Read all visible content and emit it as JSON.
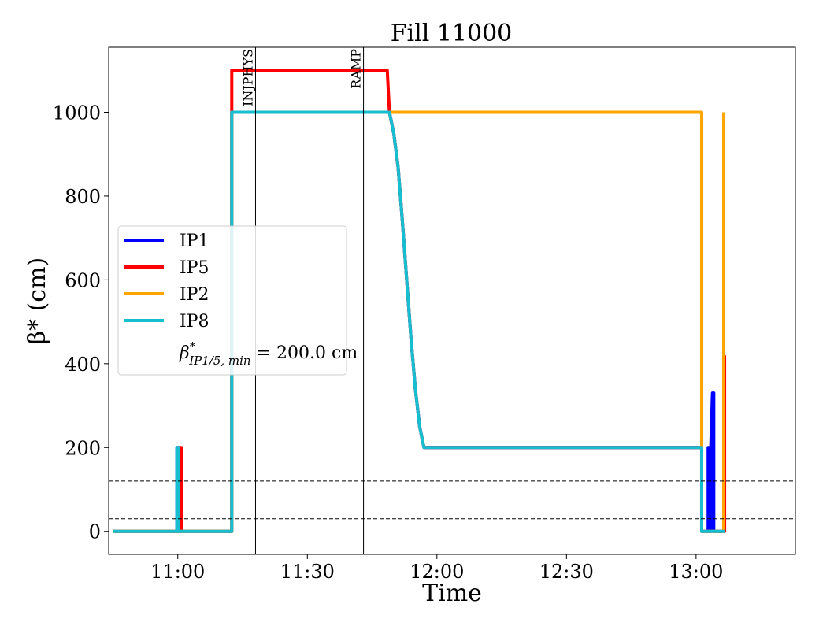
{
  "chart_data": {
    "type": "line",
    "title": "Fill 11000",
    "xlabel": "Time",
    "ylabel": "β* (cm)",
    "x_unit": "time of day (HH:MM)",
    "xlim": [
      "10:44",
      "13:23"
    ],
    "ylim": [
      -55,
      1155
    ],
    "xticks": [
      {
        "t": "11:00",
        "label": "11:00"
      },
      {
        "t": "11:30",
        "label": "11:30"
      },
      {
        "t": "12:00",
        "label": "12:00"
      },
      {
        "t": "12:30",
        "label": "12:30"
      },
      {
        "t": "13:00",
        "label": "13:00"
      }
    ],
    "yticks": [
      0,
      200,
      400,
      600,
      800,
      1000
    ],
    "grid": false,
    "legend": {
      "position": "center-left",
      "entries": [
        {
          "label": "IP1",
          "color": "#0000ff"
        },
        {
          "label": "IP5",
          "color": "#ff0000"
        },
        {
          "label": "IP2",
          "color": "#ffa500"
        },
        {
          "label": "IP8",
          "color": "#17becf"
        }
      ],
      "annotation": {
        "symbol": "β",
        "sup": "*",
        "sub": "IP1/5, min",
        "text": " = 200.0 cm"
      }
    },
    "vlines": [
      {
        "t": "11:18",
        "label": "INJPHYS"
      },
      {
        "t": "11:43",
        "label": "RAMP"
      }
    ],
    "hlines": [
      30,
      120
    ],
    "series": [
      {
        "name": "IP1",
        "color": "#0000ff",
        "points": [
          [
            "10:45",
            0
          ],
          [
            "10:59.8",
            0
          ],
          [
            "10:59.8",
            200
          ],
          [
            "11:00.2",
            200
          ],
          [
            "11:00.2",
            0
          ],
          [
            "11:12.5",
            0
          ],
          [
            "11:12.5",
            1000
          ],
          [
            "11:49",
            1000
          ],
          [
            "11:50",
            950
          ],
          [
            "11:51",
            870
          ],
          [
            "11:52",
            740
          ],
          [
            "11:53",
            600
          ],
          [
            "11:54",
            460
          ],
          [
            "11:55",
            340
          ],
          [
            "11:56",
            250
          ],
          [
            "11:57",
            200
          ],
          [
            "13:01.3",
            200
          ],
          [
            "13:01.3",
            0
          ],
          [
            "13:02.8",
            0
          ],
          [
            "13:02.8",
            200
          ],
          [
            "13:03.1",
            200
          ],
          [
            "13:03.1",
            0
          ],
          [
            "13:03.4",
            0
          ],
          [
            "13:03.4",
            200
          ],
          [
            "13:03.8",
            330
          ],
          [
            "13:04.1",
            330
          ],
          [
            "13:04.1",
            0
          ],
          [
            "13:06.6",
            0
          ]
        ]
      },
      {
        "name": "IP5",
        "color": "#ff0000",
        "points": [
          [
            "10:45",
            0
          ],
          [
            "11:00.5",
            0
          ],
          [
            "11:00.5",
            200
          ],
          [
            "11:00.8",
            200
          ],
          [
            "11:00.8",
            0
          ],
          [
            "11:12.5",
            0
          ],
          [
            "11:12.5",
            1100
          ],
          [
            "11:48.5",
            1100
          ],
          [
            "11:49",
            1000
          ],
          [
            "11:50",
            950
          ],
          [
            "11:51",
            870
          ],
          [
            "11:52",
            740
          ],
          [
            "11:53",
            600
          ],
          [
            "11:54",
            460
          ],
          [
            "11:55",
            340
          ],
          [
            "11:56",
            250
          ],
          [
            "11:57",
            200
          ],
          [
            "13:01.3",
            200
          ],
          [
            "13:01.3",
            0
          ],
          [
            "13:06.6",
            0
          ],
          [
            "13:06.6",
            420
          ]
        ]
      },
      {
        "name": "IP2",
        "color": "#ffa500",
        "points": [
          [
            "10:45",
            0
          ],
          [
            "11:12.5",
            0
          ],
          [
            "11:12.5",
            1000
          ],
          [
            "13:01.3",
            1000
          ],
          [
            "13:01.3",
            0
          ],
          [
            "13:06.4",
            0
          ],
          [
            "13:06.4",
            1000
          ]
        ]
      },
      {
        "name": "IP8",
        "color": "#17becf",
        "points": [
          [
            "10:45",
            0
          ],
          [
            "10:59.8",
            0
          ],
          [
            "10:59.8",
            200
          ],
          [
            "11:00.1",
            200
          ],
          [
            "11:00.1",
            0
          ],
          [
            "11:12.5",
            0
          ],
          [
            "11:12.5",
            1000
          ],
          [
            "11:49",
            1000
          ],
          [
            "11:50",
            950
          ],
          [
            "11:51",
            870
          ],
          [
            "11:52",
            740
          ],
          [
            "11:53",
            600
          ],
          [
            "11:54",
            460
          ],
          [
            "11:55",
            340
          ],
          [
            "11:56",
            250
          ],
          [
            "11:57",
            200
          ],
          [
            "13:01.3",
            200
          ],
          [
            "13:01.3",
            0
          ],
          [
            "13:06.6",
            0
          ]
        ]
      }
    ]
  }
}
